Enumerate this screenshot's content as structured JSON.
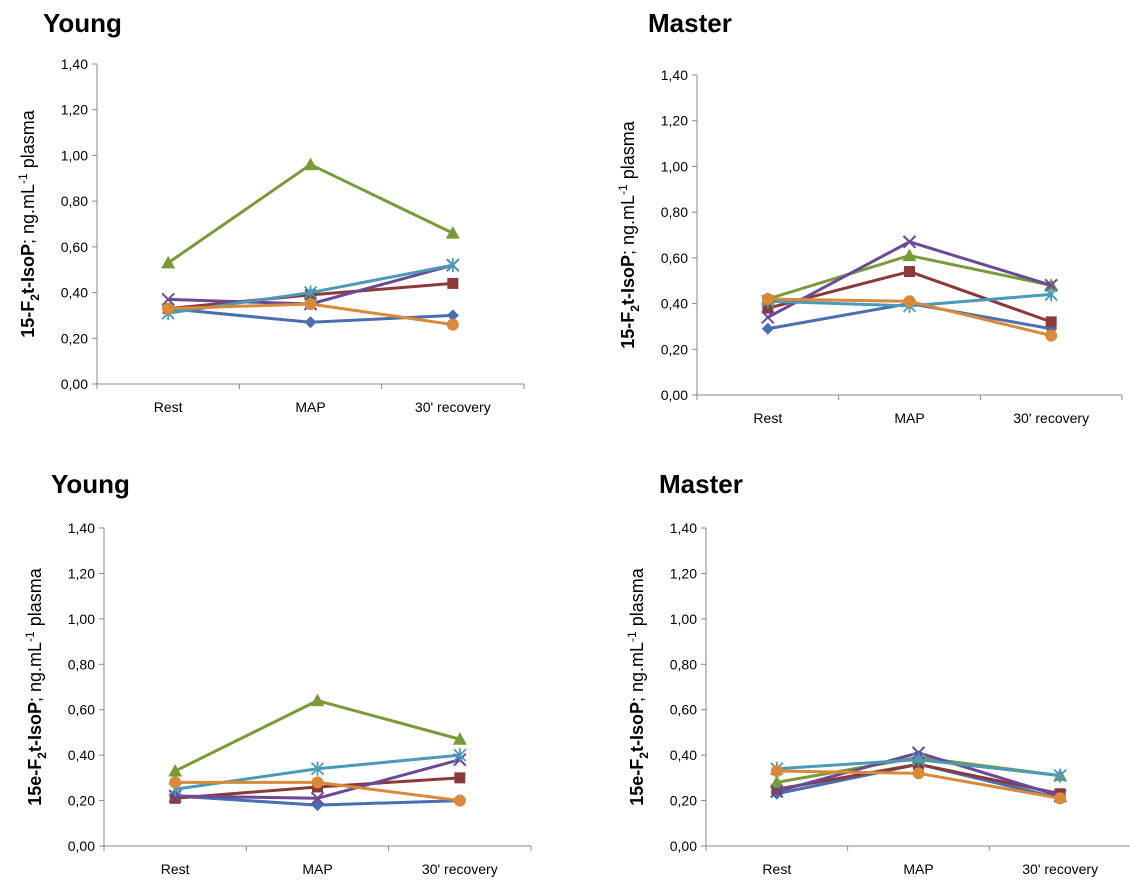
{
  "colors": {
    "diamond": "#4a6eb0",
    "square": "#8b3a3a",
    "triangle": "#7a9a3a",
    "x": "#6a4a96",
    "star": "#4a9ab8",
    "circle": "#d8893a"
  },
  "chart_data": [
    {
      "type": "line",
      "title": "Young",
      "ylabel": "15-F2t-IsoP; ng.mL-1 plasma",
      "ylabel_parts": {
        "pre": "15-F",
        "sub": "2",
        "mid": "t-IsoP",
        "post": "; ng.mL",
        "sup": "-1",
        "end": " plasma"
      },
      "categories": [
        "Rest",
        "MAP",
        "30' recovery"
      ],
      "ylim": [
        0,
        1.4
      ],
      "yticks": [
        "0,00",
        "0,20",
        "0,40",
        "0,60",
        "0,80",
        "1,00",
        "1,20",
        "1,40"
      ],
      "series": [
        {
          "marker": "diamond",
          "values": [
            0.33,
            0.27,
            0.3
          ]
        },
        {
          "marker": "square",
          "values": [
            0.33,
            0.39,
            0.44
          ]
        },
        {
          "marker": "triangle",
          "values": [
            0.53,
            0.96,
            0.66
          ]
        },
        {
          "marker": "x",
          "values": [
            0.37,
            0.35,
            0.52
          ]
        },
        {
          "marker": "star",
          "values": [
            0.31,
            0.4,
            0.52
          ]
        },
        {
          "marker": "circle",
          "values": [
            0.33,
            0.35,
            0.26
          ]
        }
      ]
    },
    {
      "type": "line",
      "title": "Master",
      "ylabel": "15-F2t-IsoP; ng.mL-1 plasma",
      "ylabel_parts": {
        "pre": "15-F",
        "sub": "2",
        "mid": "t-IsoP",
        "post": "; ng.mL",
        "sup": "-1",
        "end": " plasma"
      },
      "categories": [
        "Rest",
        "MAP",
        "30' recovery"
      ],
      "ylim": [
        0,
        1.4
      ],
      "yticks": [
        "0,00",
        "0,20",
        "0,40",
        "0,60",
        "0,80",
        "1,00",
        "1,20",
        "1,40"
      ],
      "series": [
        {
          "marker": "diamond",
          "values": [
            0.29,
            0.4,
            0.29
          ]
        },
        {
          "marker": "square",
          "values": [
            0.38,
            0.54,
            0.32
          ]
        },
        {
          "marker": "triangle",
          "values": [
            0.42,
            0.61,
            0.48
          ]
        },
        {
          "marker": "x",
          "values": [
            0.34,
            0.67,
            0.48
          ]
        },
        {
          "marker": "star",
          "values": [
            0.41,
            0.39,
            0.44
          ]
        },
        {
          "marker": "circle",
          "values": [
            0.42,
            0.41,
            0.26
          ]
        }
      ]
    },
    {
      "type": "line",
      "title": "Young",
      "ylabel": "15e-F2t-IsoP; ng.mL-1 plasma",
      "ylabel_parts": {
        "pre": "15e-F",
        "sub": "2",
        "mid": "t-IsoP",
        "post": "; ng.mL",
        "sup": "-1",
        "end": " plasma"
      },
      "categories": [
        "Rest",
        "MAP",
        "30' recovery"
      ],
      "ylim": [
        0,
        1.4
      ],
      "yticks": [
        "0,00",
        "0,20",
        "0,40",
        "0,60",
        "0,80",
        "1,00",
        "1,20",
        "1,40"
      ],
      "series": [
        {
          "marker": "diamond",
          "values": [
            0.22,
            0.18,
            0.2
          ]
        },
        {
          "marker": "square",
          "values": [
            0.21,
            0.26,
            0.3
          ]
        },
        {
          "marker": "triangle",
          "values": [
            0.33,
            0.64,
            0.47
          ]
        },
        {
          "marker": "x",
          "values": [
            0.22,
            0.21,
            0.38
          ]
        },
        {
          "marker": "star",
          "values": [
            0.25,
            0.34,
            0.4
          ]
        },
        {
          "marker": "circle",
          "values": [
            0.28,
            0.28,
            0.2
          ]
        }
      ]
    },
    {
      "type": "line",
      "title": "Master",
      "ylabel": "15e-F2t-IsoP; ng.mL-1 plasma",
      "ylabel_parts": {
        "pre": "15e-F",
        "sub": "2",
        "mid": "t-IsoP",
        "post": "; ng.mL",
        "sup": "-1",
        "end": " plasma"
      },
      "categories": [
        "Rest",
        "MAP",
        "30' recovery"
      ],
      "ylim": [
        0,
        1.4
      ],
      "yticks": [
        "0,00",
        "0,20",
        "0,40",
        "0,60",
        "0,80",
        "1,00",
        "1,20",
        "1,40"
      ],
      "series": [
        {
          "marker": "diamond",
          "values": [
            0.23,
            0.36,
            0.21
          ]
        },
        {
          "marker": "square",
          "values": [
            0.25,
            0.36,
            0.23
          ]
        },
        {
          "marker": "triangle",
          "values": [
            0.28,
            0.39,
            0.31
          ]
        },
        {
          "marker": "x",
          "values": [
            0.24,
            0.41,
            0.22
          ]
        },
        {
          "marker": "star",
          "values": [
            0.34,
            0.38,
            0.31
          ]
        },
        {
          "marker": "circle",
          "values": [
            0.33,
            0.32,
            0.21
          ]
        }
      ]
    }
  ]
}
